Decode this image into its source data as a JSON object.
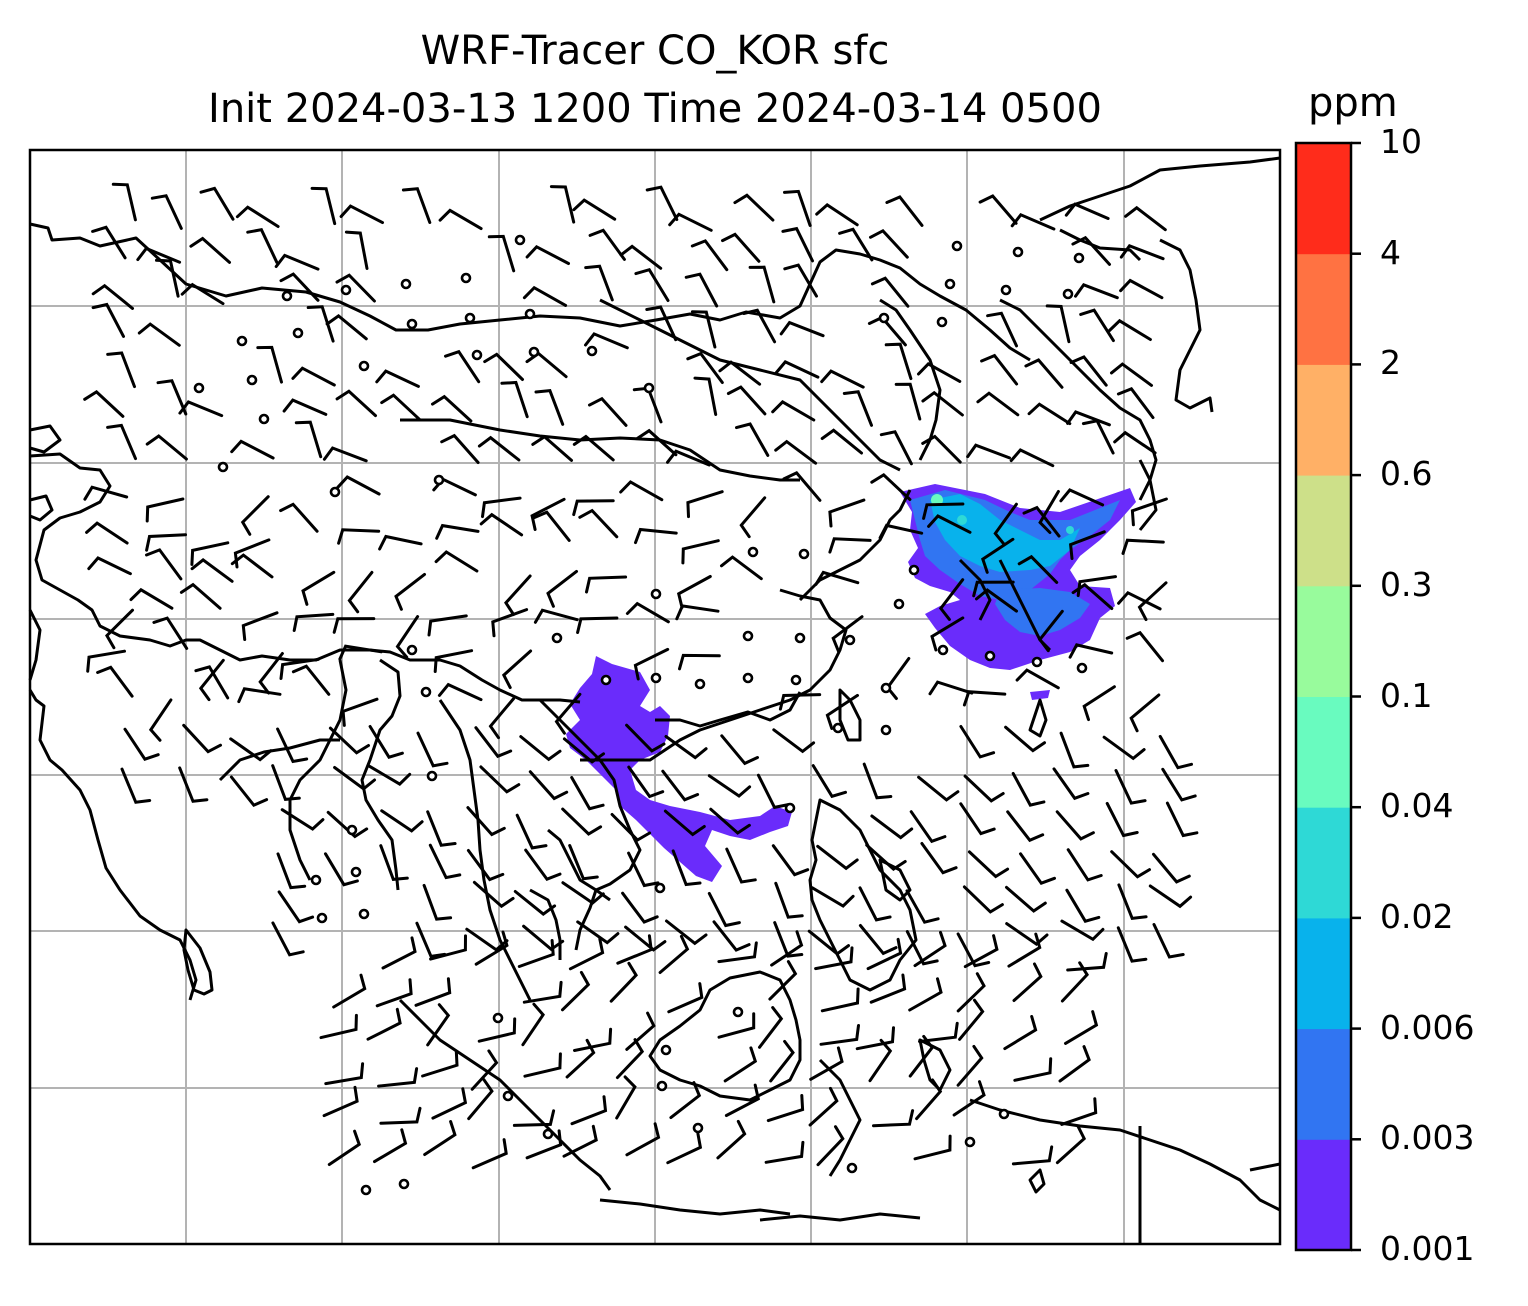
{
  "title": {
    "line1": "WRF-Tracer CO_KOR sfc",
    "line2": "Init 2024-03-13 1200 Time 2024-03-14 0500"
  },
  "colorbar": {
    "unit": "ppm",
    "levels": [
      "0.001",
      "0.003",
      "0.006",
      "0.02",
      "0.04",
      "0.1",
      "0.3",
      "0.6",
      "2",
      "4",
      "10"
    ],
    "colors": [
      "#6a2cfb",
      "#3175f2",
      "#08b2ec",
      "#2ed9d6",
      "#69fbbf",
      "#98fb9c",
      "#cde089",
      "#ffb066",
      "#ff7242",
      "#ff2c1b"
    ]
  },
  "map": {
    "gridlines": true,
    "concentration_color_main": "#6a2cfb",
    "concentration_color_secondary": "#3175f2",
    "concentration_color_tertiary": "#08b2ec",
    "wind_symbol_color": "#000000"
  }
}
